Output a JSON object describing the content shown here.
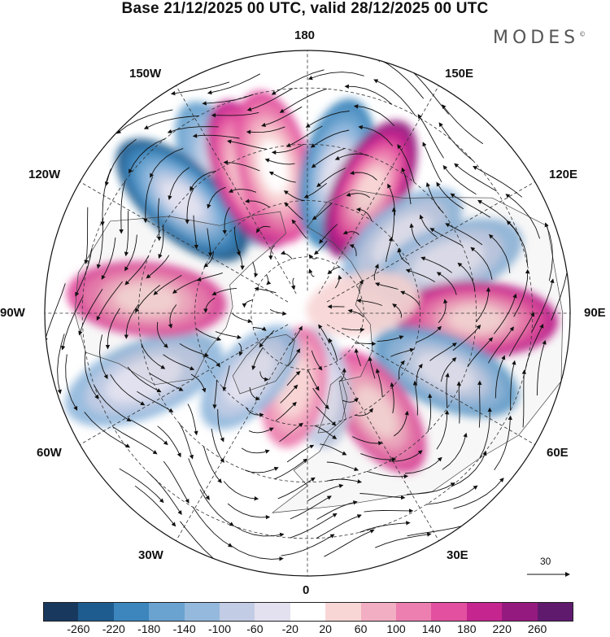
{
  "title": "Base 21/12/2025 00 UTC, valid 28/12/2025 00 UTC",
  "brand": "MODES",
  "brand_mark": "©",
  "longitude_labels": {
    "top": "180",
    "bottom": "0",
    "left": "90W",
    "right": "90E",
    "upper_left_1": "150W",
    "upper_left_2": "120W",
    "upper_right_1": "150E",
    "upper_right_2": "120E",
    "lower_left_1": "60W",
    "lower_left_2": "30W",
    "lower_right_1": "60E",
    "lower_right_2": "30E"
  },
  "reference_vector": {
    "label": "30"
  },
  "colorbar": {
    "colors": [
      "#18385e",
      "#1e5c8f",
      "#3c86bd",
      "#6aa3d0",
      "#95b9dd",
      "#c2cce4",
      "#e3e1ef",
      "#ffffff",
      "#f8d6d6",
      "#f2aec2",
      "#ec7fb0",
      "#e2509f",
      "#c4258f",
      "#951a7f",
      "#5f1a6e"
    ],
    "ticks": [
      "-260",
      "-220",
      "-180",
      "-140",
      "-100",
      "-60",
      "-20",
      "20",
      "60",
      "100",
      "140",
      "180",
      "220",
      "260"
    ]
  },
  "anomaly_centers": [
    {
      "lon": -150,
      "lat": 47,
      "value": -140
    },
    {
      "lon": -132,
      "lat": 45,
      "value": -220
    },
    {
      "lon": -158,
      "lat": 50,
      "value": 220
    },
    {
      "lon": -167,
      "lat": 50,
      "value": 180
    },
    {
      "lon": 168,
      "lat": 52,
      "value": -200
    },
    {
      "lon": 153,
      "lat": 53,
      "value": 240
    },
    {
      "lon": 128,
      "lat": 58,
      "value": -100
    },
    {
      "lon": 110,
      "lat": 50,
      "value": -120
    },
    {
      "lon": 88,
      "lat": 45,
      "value": 200
    },
    {
      "lon": 67,
      "lat": 50,
      "value": -170
    },
    {
      "lon": 35,
      "lat": 58,
      "value": 160
    },
    {
      "lon": 8,
      "lat": 70,
      "value": -80
    },
    {
      "lon": -10,
      "lat": 70,
      "value": 130
    },
    {
      "lon": -42,
      "lat": 67,
      "value": -110
    },
    {
      "lon": -68,
      "lat": 43,
      "value": -110
    },
    {
      "lon": -95,
      "lat": 47,
      "value": 160
    },
    {
      "lon": 100,
      "lat": 75,
      "value": 30
    }
  ]
}
